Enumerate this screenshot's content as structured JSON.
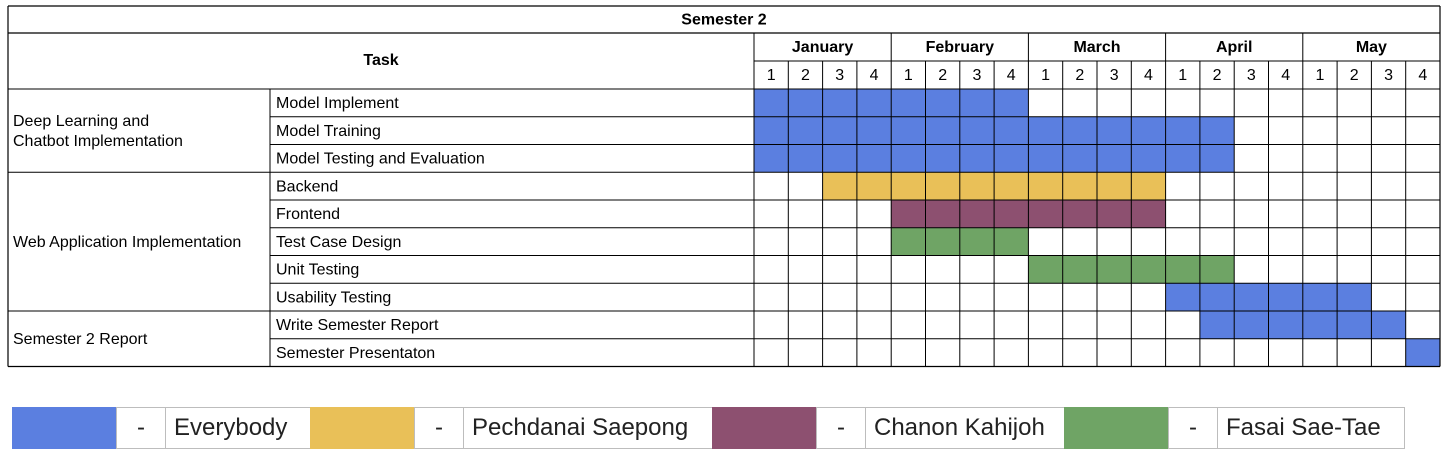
{
  "title": "Semester 2",
  "task_header": "Task",
  "months": [
    "January",
    "February",
    "March",
    "April",
    "May"
  ],
  "week_labels": [
    "1",
    "2",
    "3",
    "4"
  ],
  "groups": [
    {
      "name": "Deep Learning and Chatbot Implementation",
      "name_lines": [
        "Deep Learning and",
        "Chatbot Implementation"
      ]
    },
    {
      "name": "Web Application Implementation",
      "name_lines": [
        "Web Application Implementation"
      ]
    },
    {
      "name": "Semester 2 Report",
      "name_lines": [
        "Semester 2 Report"
      ]
    }
  ],
  "legend": [
    {
      "dash": "-",
      "label": "Everybody",
      "color": "#5b7fe0"
    },
    {
      "dash": "-",
      "label": "Pechdanai Saepong",
      "color": "#e9c058"
    },
    {
      "dash": "-",
      "label": "Chanon Kahijoh",
      "color": "#8d5070"
    },
    {
      "dash": "-",
      "label": "Fasai Sae-Tae",
      "color": "#6fa465"
    }
  ],
  "chart_data": {
    "type": "gantt",
    "title": "Semester 2",
    "x_units": "week of month",
    "total_weeks": 20,
    "tasks": [
      {
        "group": "Deep Learning and Chatbot Implementation",
        "name": "Model Implement",
        "start_week": 1,
        "end_week": 8,
        "assignee": "Everybody",
        "color": "#5b7fe0"
      },
      {
        "group": "Deep Learning and Chatbot Implementation",
        "name": "Model Training",
        "start_week": 1,
        "end_week": 14,
        "assignee": "Everybody",
        "color": "#5b7fe0"
      },
      {
        "group": "Deep Learning and Chatbot Implementation",
        "name": "Model Testing and Evaluation",
        "start_week": 1,
        "end_week": 14,
        "assignee": "Everybody",
        "color": "#5b7fe0"
      },
      {
        "group": "Web Application Implementation",
        "name": "Backend",
        "start_week": 3,
        "end_week": 12,
        "assignee": "Pechdanai Saepong",
        "color": "#e9c058"
      },
      {
        "group": "Web Application Implementation",
        "name": "Frontend",
        "start_week": 5,
        "end_week": 12,
        "assignee": "Chanon Kahijoh",
        "color": "#8d5070"
      },
      {
        "group": "Web Application Implementation",
        "name": "Test Case Design",
        "start_week": 5,
        "end_week": 8,
        "assignee": "Fasai Sae-Tae",
        "color": "#6fa465"
      },
      {
        "group": "Web Application Implementation",
        "name": "Unit Testing",
        "start_week": 9,
        "end_week": 14,
        "assignee": "Fasai Sae-Tae",
        "color": "#6fa465"
      },
      {
        "group": "Web Application Implementation",
        "name": "Usability Testing",
        "start_week": 13,
        "end_week": 18,
        "assignee": "Everybody",
        "color": "#5b7fe0"
      },
      {
        "group": "Semester 2 Report",
        "name": "Write Semester Report",
        "start_week": 14,
        "end_week": 19,
        "assignee": "Everybody",
        "color": "#5b7fe0"
      },
      {
        "group": "Semester 2 Report",
        "name": "Semester Presentaton",
        "start_week": 20,
        "end_week": 20,
        "assignee": "Everybody",
        "color": "#5b7fe0"
      }
    ]
  }
}
